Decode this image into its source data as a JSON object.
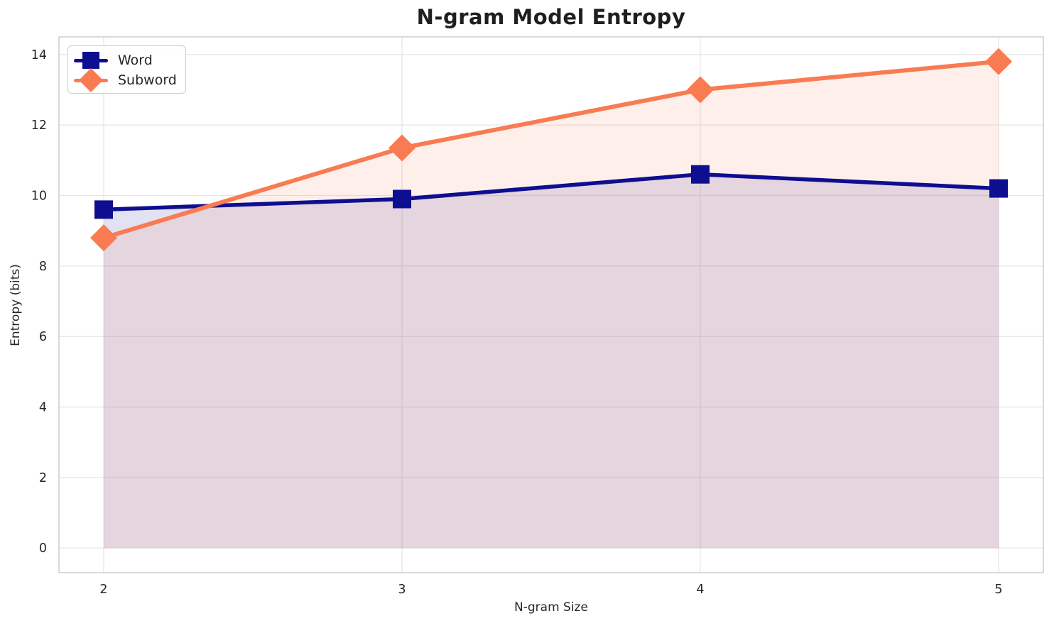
{
  "chart_data": {
    "type": "line",
    "title": "N-gram Model Entropy",
    "xlabel": "N-gram Size",
    "ylabel": "Entropy (bits)",
    "x": [
      2,
      3,
      4,
      5
    ],
    "series": [
      {
        "name": "Word",
        "values": [
          9.6,
          9.9,
          10.6,
          10.2
        ],
        "color": "#0e0e91",
        "marker": "square",
        "line_width": 5.5
      },
      {
        "name": "Subword",
        "values": [
          8.8,
          11.35,
          13.0,
          13.8
        ],
        "color": "#f97b52",
        "marker": "diamond",
        "line_width": 6
      }
    ],
    "xticks": [
      2,
      3,
      4,
      5
    ],
    "yticks": [
      0,
      2,
      4,
      6,
      8,
      10,
      12,
      14
    ],
    "xlim": [
      1.85,
      5.15
    ],
    "ylim": [
      -0.7,
      14.5
    ],
    "fill_to_zero": true,
    "fill_alpha": 0.12,
    "grid": true,
    "legend_position": "upper left",
    "colors": {
      "grid": "#e6e6e6",
      "frame": "#cdcdcd",
      "text": "#262626",
      "title": "#1f1f1f",
      "background": "#ffffff"
    }
  }
}
